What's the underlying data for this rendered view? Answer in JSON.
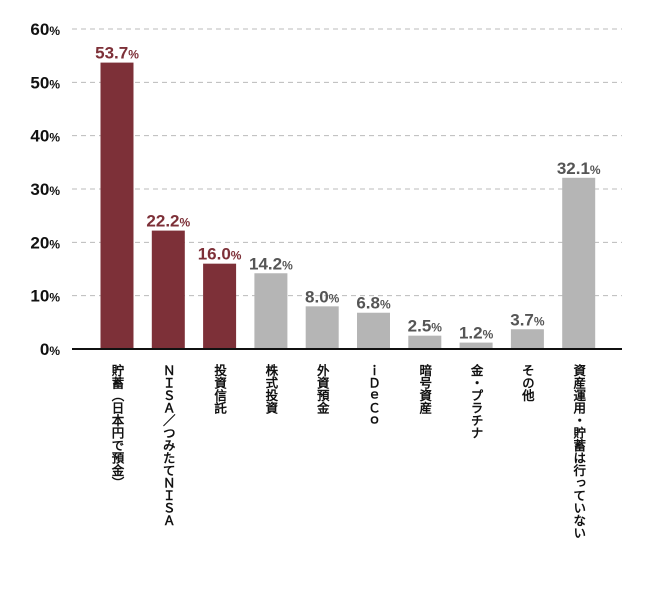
{
  "chart_data": {
    "type": "bar",
    "categories": [
      "貯蓄（日本円で預金）",
      "ＮＩＳＡ／つみたてＮＩＳＡ",
      "投資信託",
      "株式投資",
      "外資預金",
      "ｉＤｅＣｏ",
      "暗号資産",
      "金・プラチナ",
      "その他",
      "資産運用・貯蓄は行っていない"
    ],
    "values": [
      53.7,
      22.2,
      16.0,
      14.2,
      8.0,
      6.8,
      2.5,
      1.2,
      3.7,
      32.1
    ],
    "value_labels": [
      "53.7",
      "22.2",
      "16.0",
      "14.2",
      "8.0",
      "6.8",
      "2.5",
      "1.2",
      "3.7",
      "32.1"
    ],
    "value_unit": "%",
    "highlighted": [
      true,
      true,
      true,
      false,
      false,
      false,
      false,
      false,
      false,
      false
    ],
    "ylim": [
      0,
      60
    ],
    "yticks": [
      0,
      10,
      20,
      30,
      40,
      50,
      60
    ],
    "ytick_labels": [
      "0",
      "10",
      "20",
      "30",
      "40",
      "50",
      "60"
    ],
    "ytick_unit": "%",
    "grid": true,
    "legend": "none",
    "title": "",
    "xlabel": "",
    "ylabel": "",
    "colors": {
      "highlight": "#7d3038",
      "normal": "#b5b5b5",
      "highlight_label": "#7d3038",
      "normal_label": "#555555",
      "grid": "#bbbbbb",
      "axis": "#111111"
    }
  }
}
